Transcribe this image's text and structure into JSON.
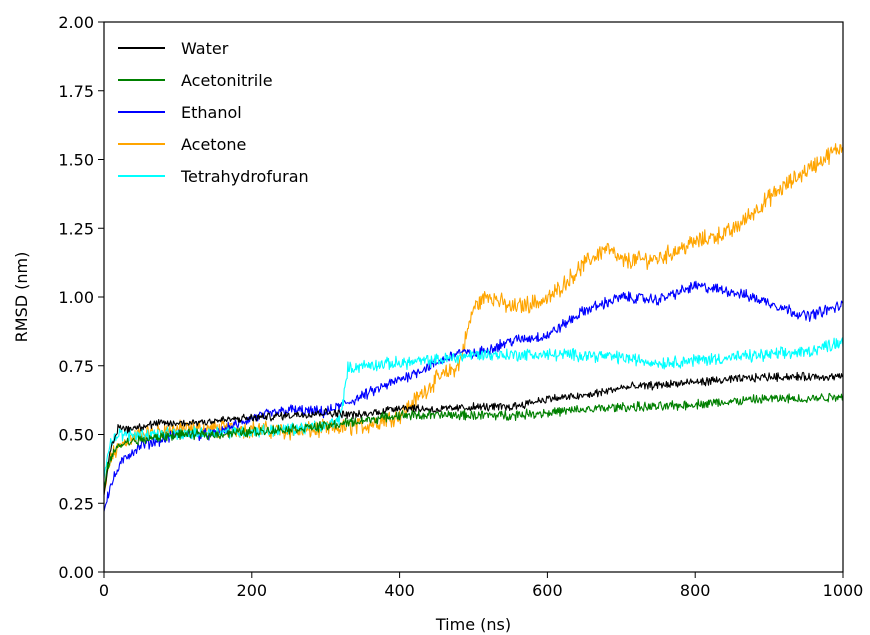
{
  "chart_data": {
    "type": "line",
    "xlabel": "Time (ns)",
    "ylabel": "RMSD (nm)",
    "xlim": [
      0,
      1000
    ],
    "ylim": [
      0,
      2.0
    ],
    "x_ticks": [
      0,
      200,
      400,
      600,
      800,
      1000
    ],
    "x_tick_labels": [
      "0",
      "200",
      "400",
      "600",
      "800",
      "1000"
    ],
    "y_ticks": [
      0,
      0.25,
      0.5,
      0.75,
      1.0,
      1.25,
      1.5,
      1.75,
      2.0
    ],
    "y_tick_labels": [
      "0.00",
      "0.25",
      "0.50",
      "0.75",
      "1.00",
      "1.25",
      "1.50",
      "1.75",
      "2.00"
    ],
    "grid": false,
    "legend_position": "top-left",
    "series": [
      {
        "name": "Water",
        "color": "#000000",
        "x": [
          0,
          5,
          10,
          20,
          30,
          50,
          75,
          100,
          150,
          200,
          250,
          300,
          350,
          400,
          450,
          500,
          550,
          600,
          650,
          700,
          750,
          800,
          850,
          900,
          950,
          1000
        ],
        "y": [
          0.28,
          0.38,
          0.45,
          0.53,
          0.52,
          0.53,
          0.54,
          0.54,
          0.55,
          0.56,
          0.57,
          0.58,
          0.57,
          0.6,
          0.59,
          0.6,
          0.6,
          0.63,
          0.64,
          0.67,
          0.68,
          0.69,
          0.7,
          0.71,
          0.71,
          0.71
        ]
      },
      {
        "name": "Acetonitrile",
        "color": "#008000",
        "x": [
          0,
          5,
          10,
          20,
          30,
          50,
          75,
          100,
          150,
          200,
          250,
          300,
          350,
          400,
          450,
          500,
          550,
          600,
          650,
          700,
          750,
          800,
          850,
          900,
          950,
          1000
        ],
        "y": [
          0.3,
          0.38,
          0.42,
          0.46,
          0.47,
          0.48,
          0.49,
          0.5,
          0.5,
          0.51,
          0.52,
          0.53,
          0.55,
          0.57,
          0.57,
          0.57,
          0.57,
          0.58,
          0.59,
          0.6,
          0.6,
          0.61,
          0.62,
          0.63,
          0.63,
          0.64
        ]
      },
      {
        "name": "Ethanol",
        "color": "#0000ff",
        "x": [
          0,
          5,
          10,
          20,
          30,
          50,
          75,
          100,
          150,
          200,
          250,
          300,
          350,
          400,
          450,
          480,
          500,
          550,
          600,
          650,
          700,
          750,
          800,
          850,
          900,
          950,
          1000
        ],
        "y": [
          0.22,
          0.28,
          0.32,
          0.38,
          0.42,
          0.46,
          0.48,
          0.5,
          0.5,
          0.56,
          0.59,
          0.58,
          0.64,
          0.7,
          0.76,
          0.8,
          0.79,
          0.84,
          0.86,
          0.95,
          1.0,
          0.99,
          1.04,
          1.02,
          0.98,
          0.93,
          0.97
        ]
      },
      {
        "name": "Acetone",
        "color": "#ffa500",
        "x": [
          0,
          5,
          10,
          20,
          30,
          50,
          75,
          100,
          150,
          200,
          250,
          300,
          350,
          400,
          450,
          480,
          500,
          520,
          550,
          600,
          650,
          680,
          700,
          750,
          800,
          850,
          900,
          950,
          1000
        ],
        "y": [
          0.28,
          0.36,
          0.42,
          0.45,
          0.48,
          0.5,
          0.51,
          0.52,
          0.52,
          0.52,
          0.51,
          0.52,
          0.53,
          0.57,
          0.7,
          0.75,
          0.96,
          1.01,
          0.96,
          0.99,
          1.12,
          1.18,
          1.13,
          1.14,
          1.2,
          1.24,
          1.36,
          1.46,
          1.55
        ]
      },
      {
        "name": "Tetrahydrofuran",
        "color": "#00ffff",
        "x": [
          0,
          5,
          10,
          20,
          30,
          50,
          75,
          100,
          150,
          200,
          250,
          300,
          320,
          330,
          350,
          400,
          450,
          500,
          550,
          600,
          650,
          700,
          750,
          800,
          850,
          900,
          950,
          1000
        ],
        "y": [
          0.34,
          0.44,
          0.48,
          0.5,
          0.5,
          0.5,
          0.5,
          0.5,
          0.51,
          0.51,
          0.52,
          0.53,
          0.56,
          0.74,
          0.75,
          0.76,
          0.77,
          0.79,
          0.79,
          0.79,
          0.79,
          0.78,
          0.76,
          0.77,
          0.78,
          0.79,
          0.8,
          0.84
        ]
      }
    ]
  }
}
